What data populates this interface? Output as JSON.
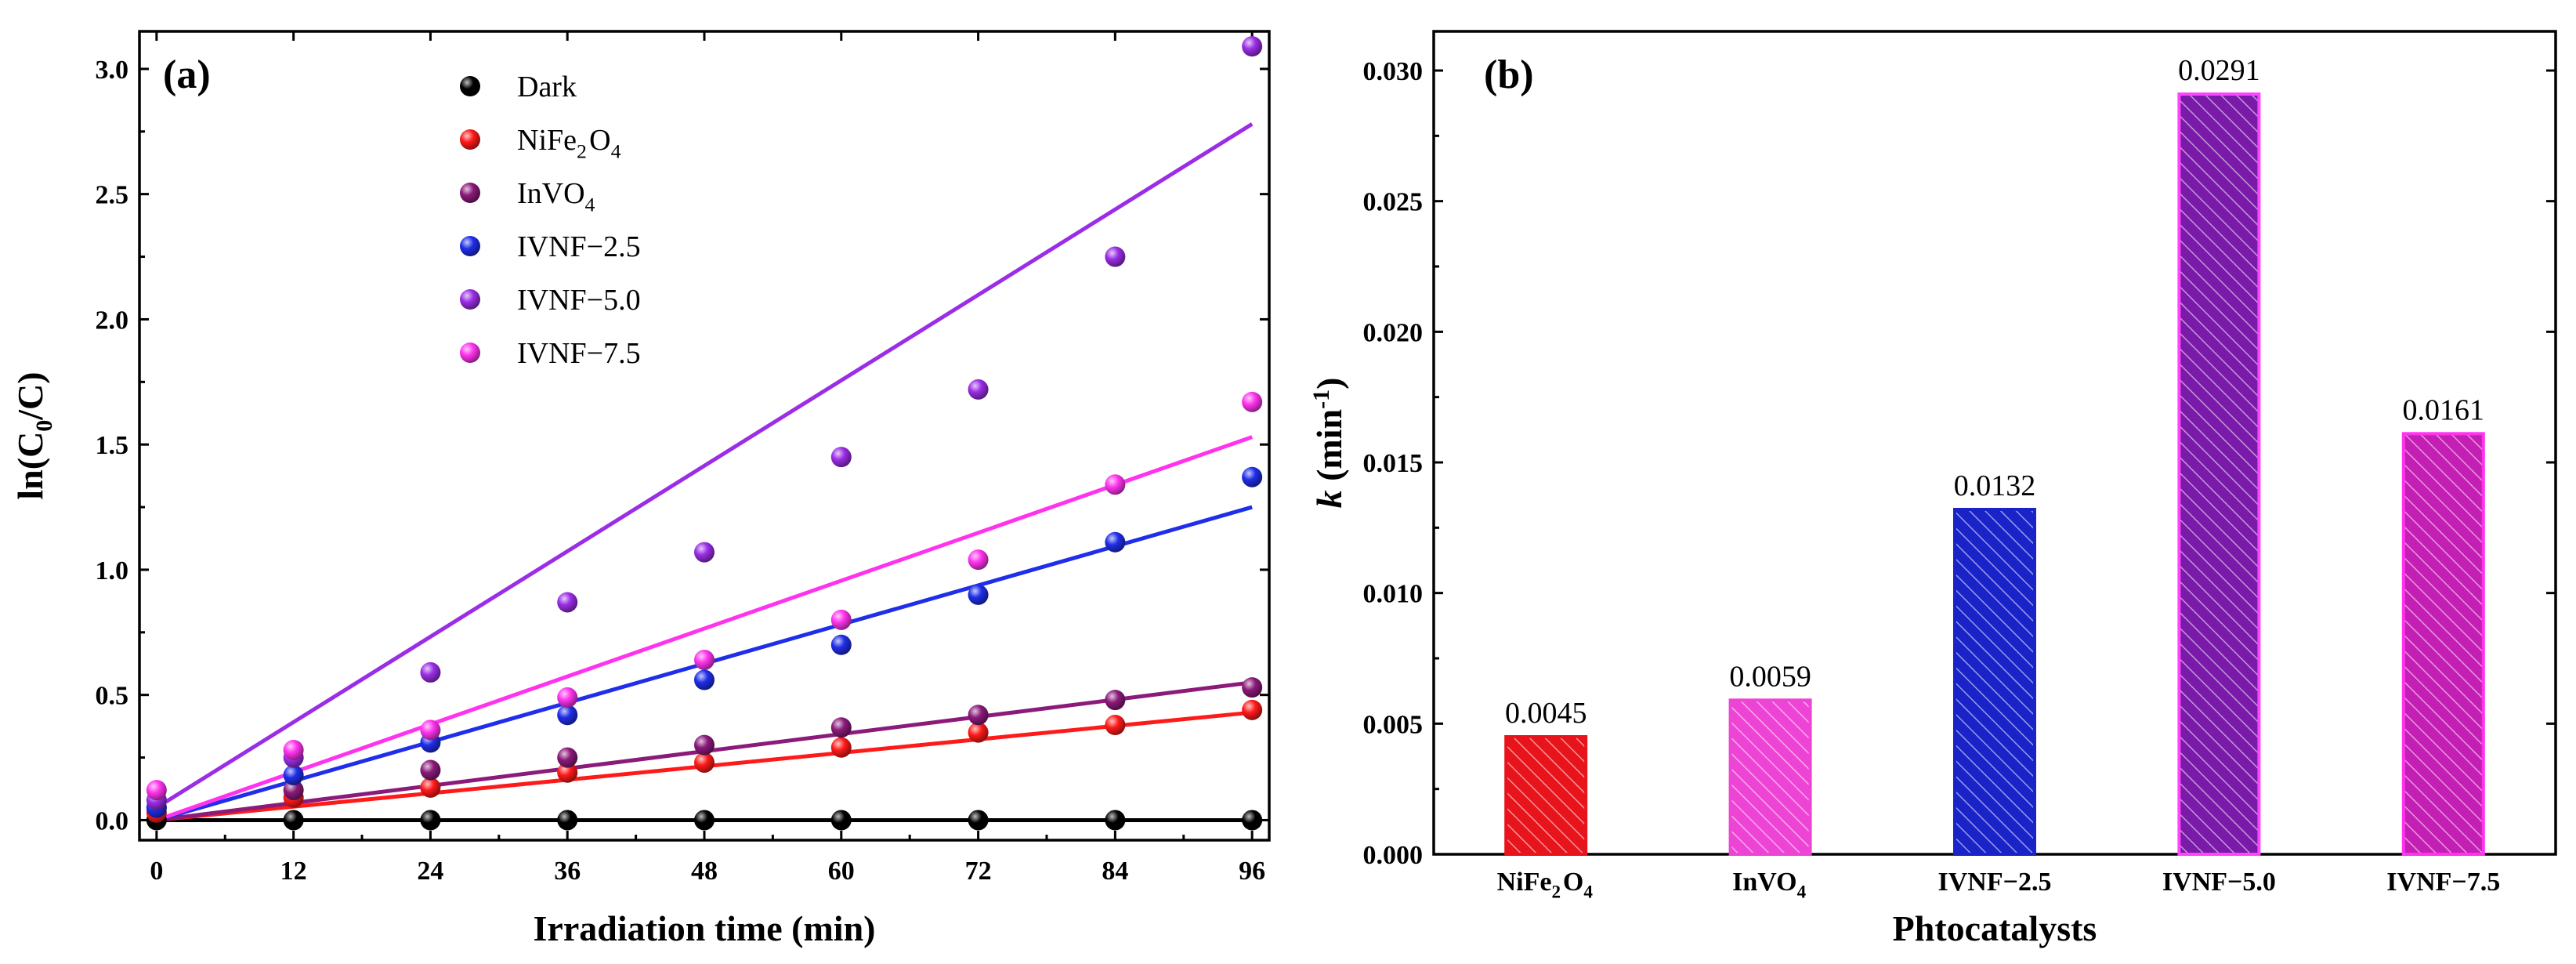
{
  "chart_data": [
    {
      "panel": "(a)",
      "type": "scatter",
      "xlabel": "Irradiation time (min)",
      "ylabel": "ln(C0/C)",
      "ylabel_parts": {
        "pre": "ln(C",
        "sub": "0",
        "post": "/C)"
      },
      "xlim": [
        -1.5,
        97.5
      ],
      "ylim": [
        -0.08,
        3.15
      ],
      "x_ticks": [
        0,
        12,
        24,
        36,
        48,
        60,
        72,
        84,
        96
      ],
      "x_tick_labels": [
        "0",
        "12",
        "24",
        "36",
        "48",
        "60",
        "72",
        "84",
        "96"
      ],
      "y_ticks": [
        0.0,
        0.5,
        1.0,
        1.5,
        2.0,
        2.5,
        3.0
      ],
      "y_tick_labels": [
        "0.0",
        "0.5",
        "1.0",
        "1.5",
        "2.0",
        "2.5",
        "3.0"
      ],
      "x": [
        0,
        12,
        24,
        36,
        48,
        60,
        72,
        84,
        96
      ],
      "series": [
        {
          "name": "Dark",
          "legend": [
            {
              "t": "Dark"
            }
          ],
          "color": "#000000",
          "values": [
            0.0,
            0.0,
            0.0,
            0.0,
            0.0,
            0.0,
            0.0,
            0.0,
            0.0
          ],
          "fit": [
            0.0,
            0.0
          ]
        },
        {
          "name": "NiFe2O4",
          "legend": [
            {
              "t": "NiFe"
            },
            {
              "t": "2",
              "sub": true
            },
            {
              "t": "O"
            },
            {
              "t": "4",
              "sub": true
            }
          ],
          "color": "#ff1a1a",
          "values": [
            0.03,
            0.09,
            0.13,
            0.19,
            0.23,
            0.29,
            0.35,
            0.38,
            0.44
          ],
          "fit": [
            0.0,
            0.43
          ]
        },
        {
          "name": "InVO4",
          "legend": [
            {
              "t": "InVO"
            },
            {
              "t": "4",
              "sub": true
            }
          ],
          "color": "#8b1a7a",
          "values": [
            0.05,
            0.12,
            0.2,
            0.25,
            0.3,
            0.37,
            0.42,
            0.48,
            0.53
          ],
          "fit": [
            0.0,
            0.55
          ]
        },
        {
          "name": "IVNF−2.5",
          "legend": [
            {
              "t": "IVNF−2.5"
            }
          ],
          "color": "#1f2ee8",
          "values": [
            0.05,
            0.18,
            0.31,
            0.42,
            0.56,
            0.7,
            0.9,
            1.11,
            1.37
          ],
          "fit": [
            0.0,
            1.25
          ]
        },
        {
          "name": "IVNF−5.0",
          "legend": [
            {
              "t": "IVNF−5.0"
            }
          ],
          "color": "#9b2de6",
          "values": [
            0.08,
            0.25,
            0.59,
            0.87,
            1.07,
            1.45,
            1.72,
            2.25,
            3.09
          ],
          "fit": [
            0.05,
            2.78
          ]
        },
        {
          "name": "IVNF−7.5",
          "legend": [
            {
              "t": "IVNF−7.5"
            }
          ],
          "color": "#ff33ee",
          "values": [
            0.12,
            0.28,
            0.36,
            0.49,
            0.64,
            0.8,
            1.04,
            1.34,
            1.67
          ],
          "fit": [
            0.0,
            1.53
          ]
        }
      ]
    },
    {
      "panel": "(b)",
      "type": "bar",
      "xlabel": "Phtocatalysts",
      "ylabel": "k (min-1)",
      "ylabel_parts": {
        "k": "k",
        "pre": " (min",
        "sup": "-1",
        "post": ")"
      },
      "ylim": [
        0.0,
        0.0315
      ],
      "y_ticks": [
        0.0,
        0.005,
        0.01,
        0.015,
        0.02,
        0.025,
        0.03
      ],
      "y_tick_labels": [
        "0.000",
        "0.005",
        "0.010",
        "0.015",
        "0.020",
        "0.025",
        "0.030"
      ],
      "categories": [
        "NiFe2O4",
        "InVO4",
        "IVNF−2.5",
        "IVNF−5.0",
        "IVNF−7.5"
      ],
      "category_labels": [
        [
          {
            "t": "NiFe"
          },
          {
            "t": "2",
            "sub": true
          },
          {
            "t": "O"
          },
          {
            "t": "4",
            "sub": true
          }
        ],
        [
          {
            "t": "InVO"
          },
          {
            "t": "4",
            "sub": true
          }
        ],
        [
          {
            "t": "IVNF−2.5"
          }
        ],
        [
          {
            "t": "IVNF−5.0"
          }
        ],
        [
          {
            "t": "IVNF−7.5"
          }
        ]
      ],
      "values": [
        0.0045,
        0.0059,
        0.0132,
        0.0291,
        0.0161
      ],
      "value_labels": [
        "0.0045",
        "0.0059",
        "0.0132",
        "0.0291",
        "0.0161"
      ],
      "colors": [
        "#e8141c",
        "#ee44d6",
        "#1a23c8",
        "#7a1aa8",
        "#c41fb4"
      ],
      "edge_colors": [
        "#e8141c",
        "#ee44d6",
        "#1a23c8",
        "#ff44ff",
        "#ff33ee"
      ]
    }
  ]
}
